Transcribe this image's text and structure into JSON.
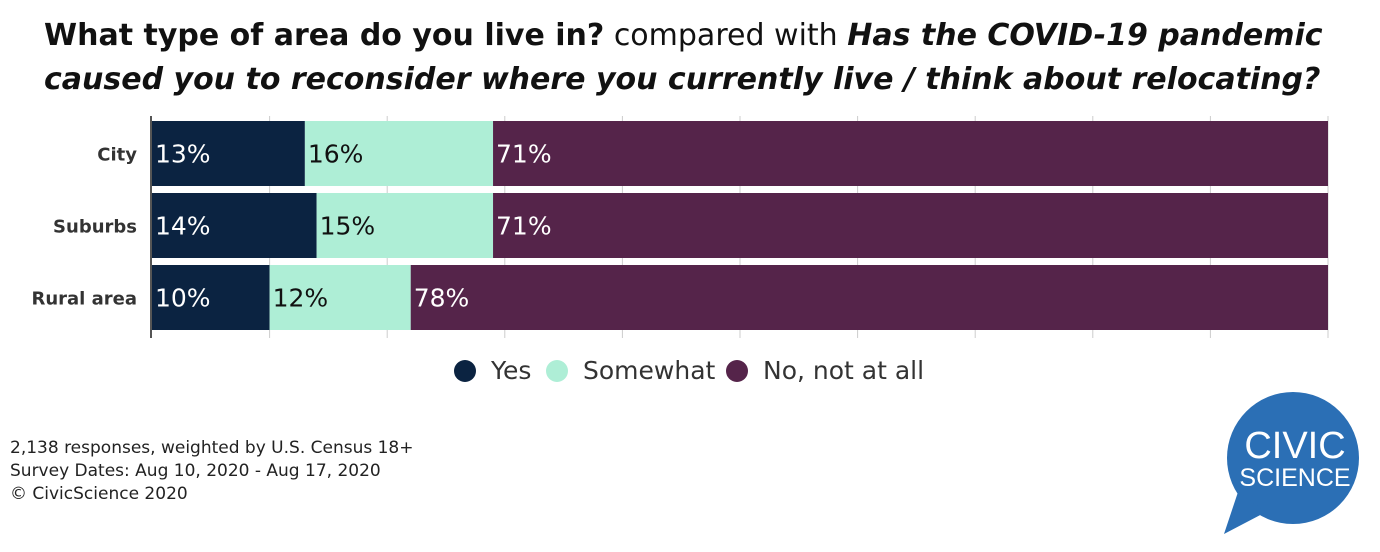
{
  "title": {
    "question1": "What type of area do you live in?",
    "connector": " compared with ",
    "question2": "Has the COVID-19 pandemic caused you to reconsider where you currently live / think about relocating?"
  },
  "chart_data": {
    "type": "bar",
    "orientation": "horizontal",
    "stacked": true,
    "percent_scale": true,
    "categories": [
      "City",
      "Suburbs",
      "Rural area"
    ],
    "series": [
      {
        "name": "Yes",
        "values": [
          13,
          14,
          10
        ],
        "labels": [
          "13%",
          "14%",
          "10%"
        ],
        "color": "#0b2341"
      },
      {
        "name": "Somewhat",
        "values": [
          16,
          15,
          12
        ],
        "labels": [
          "16%",
          "15%",
          "12%"
        ],
        "color": "#aeeed6"
      },
      {
        "name": "No, not at all",
        "values": [
          71,
          71,
          78
        ],
        "labels": [
          "71%",
          "71%",
          "78%"
        ],
        "color": "#55244a"
      }
    ],
    "xlim": [
      0,
      100
    ],
    "grid": true,
    "legend_position": "bottom"
  },
  "footer": {
    "line1": "2,138 responses, weighted by U.S. Census 18+",
    "line2": "Survey Dates: Aug 10, 2020 - Aug 17, 2020",
    "line3": "© CivicScience 2020"
  },
  "logo": {
    "line1": "CIVIC",
    "line2": "SCIENCE",
    "color": "#2b6fb5"
  }
}
